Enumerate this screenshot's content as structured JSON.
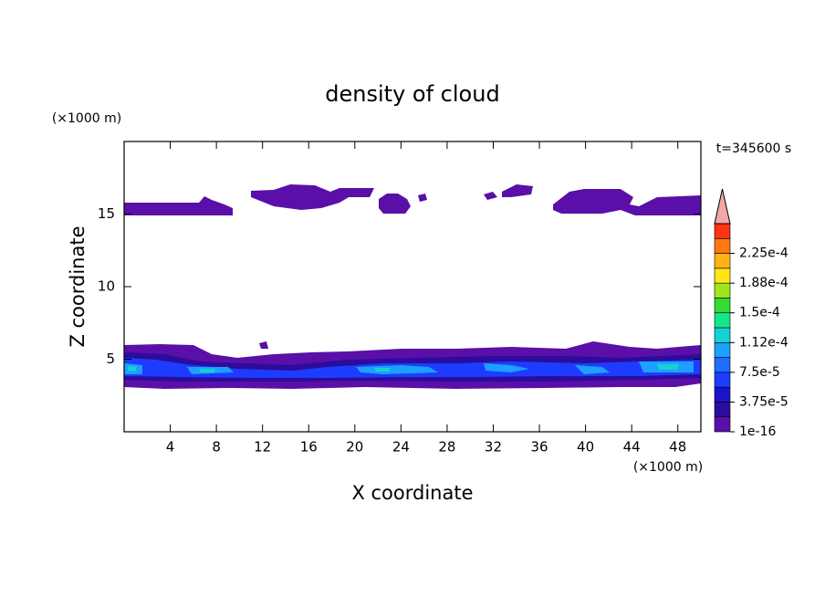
{
  "chart_data": {
    "type": "contour",
    "title": "density of cloud",
    "x_label": "X coordinate",
    "y_label": "Z coordinate",
    "x_unit": "(×1000 m)",
    "y_unit": "(×1000 m)",
    "annotation": "t=345600 s",
    "xlim": [
      0,
      50
    ],
    "ylim": [
      0,
      20
    ],
    "xticks": [
      4,
      8,
      12,
      16,
      20,
      24,
      28,
      32,
      36,
      40,
      44,
      48
    ],
    "yticks": [
      5,
      10,
      15
    ],
    "colorbar": {
      "levels": [
        0,
        1.875e-05,
        3.75e-05,
        5.625e-05,
        7.5e-05,
        9.375e-05,
        0.0001125,
        0.00013125,
        0.00015,
        0.00016875,
        0.0001875,
        0.00020625,
        0.000225,
        0.00024375,
        0.0002625
      ],
      "colors": [
        "#5a0fa8",
        "#2c0c9c",
        "#1a14c8",
        "#1e3cff",
        "#1e6eff",
        "#1ea0ff",
        "#14d2d2",
        "#14e68c",
        "#32dc32",
        "#a0e61e",
        "#ffe614",
        "#ffb414",
        "#ff7814",
        "#ff3214"
      ],
      "extend_color": "#f4a6a6",
      "ticks": [
        {
          "value": 1e-16,
          "label": "1e-16"
        },
        {
          "value": 3.75e-05,
          "label": "3.75e-5"
        },
        {
          "value": 7.5e-05,
          "label": "7.5e-5"
        },
        {
          "value": 0.0001125,
          "label": "1.12e-4"
        },
        {
          "value": 0.00015,
          "label": "1.5e-4"
        },
        {
          "value": 0.0001875,
          "label": "1.88e-4"
        },
        {
          "value": 0.000225,
          "label": "2.25e-4"
        }
      ]
    }
  }
}
